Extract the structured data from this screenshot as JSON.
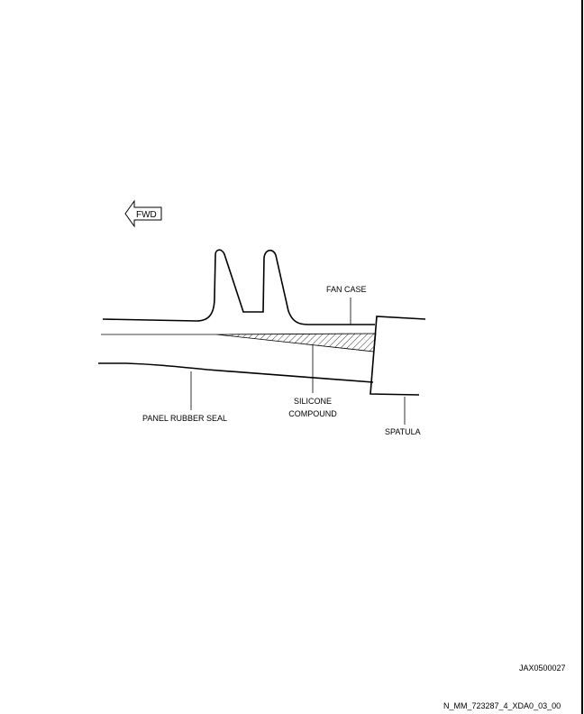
{
  "diagram": {
    "fwd_label": "FWD",
    "labels": {
      "fan_case": "FAN CASE",
      "silicone_line1": "SILICONE",
      "silicone_line2": "COMPOUND",
      "panel_rubber_seal": "PANEL RUBBER SEAL",
      "spatula": "SPATULA"
    }
  },
  "footer": {
    "figure_code": "JAX0500027",
    "document_code": "N_MM_723287_4_XDA0_03_00"
  },
  "colors": {
    "line": "#000000",
    "background": "#ffffff"
  }
}
